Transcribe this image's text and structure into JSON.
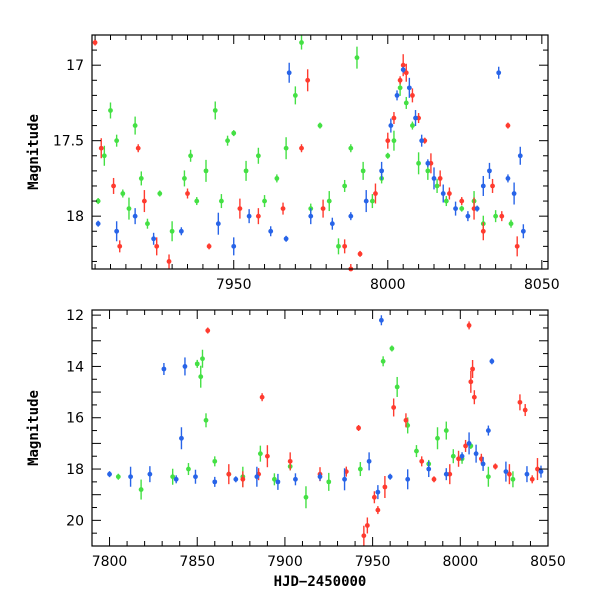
{
  "chart_data": [
    {
      "type": "scatter",
      "title": "",
      "xlabel": "",
      "ylabel": "Magnitude",
      "xlim": [
        7904,
        8052
      ],
      "ylim": [
        18.35,
        16.8
      ],
      "yaxis_inverted": true,
      "xticks": [
        7950,
        8000,
        8050
      ],
      "yticks": [
        17,
        17.5,
        18
      ],
      "ytick_labels": [
        "17",
        "17.5",
        "18"
      ],
      "grid": false,
      "series": [
        {
          "color": "#44e044",
          "points": [
            [
              7906,
              17.9
            ],
            [
              7908,
              17.6
            ],
            [
              7910,
              17.3
            ],
            [
              7912,
              17.5
            ],
            [
              7914,
              17.85
            ],
            [
              7916,
              17.95
            ],
            [
              7918,
              17.4
            ],
            [
              7920,
              17.75
            ],
            [
              7922,
              18.05
            ],
            [
              7926,
              17.85
            ],
            [
              7930,
              18.1
            ],
            [
              7934,
              17.75
            ],
            [
              7936,
              17.6
            ],
            [
              7938,
              17.9
            ],
            [
              7941,
              17.7
            ],
            [
              7944,
              17.3
            ],
            [
              7946,
              17.9
            ],
            [
              7948,
              17.5
            ],
            [
              7950,
              17.45
            ],
            [
              7954,
              17.7
            ],
            [
              7958,
              17.6
            ],
            [
              7960,
              17.9
            ],
            [
              7964,
              17.75
            ],
            [
              7967,
              17.55
            ],
            [
              7970,
              17.2
            ],
            [
              7972,
              16.85
            ],
            [
              7975,
              17.95
            ],
            [
              7978,
              17.4
            ],
            [
              7981,
              17.9
            ],
            [
              7984,
              18.2
            ],
            [
              7986,
              17.8
            ],
            [
              7988,
              17.55
            ],
            [
              7990,
              16.95
            ],
            [
              7992,
              17.7
            ],
            [
              7995,
              17.9
            ],
            [
              7998,
              17.75
            ],
            [
              8000,
              17.6
            ],
            [
              8002,
              17.5
            ],
            [
              8004,
              17.15
            ],
            [
              8006,
              17.25
            ],
            [
              8008,
              17.4
            ],
            [
              8010,
              17.65
            ],
            [
              8013,
              17.7
            ],
            [
              8016,
              17.8
            ],
            [
              8019,
              17.9
            ],
            [
              8024,
              17.95
            ],
            [
              8028,
              17.9
            ],
            [
              8031,
              18.05
            ],
            [
              8035,
              18.0
            ],
            [
              8040,
              18.05
            ]
          ]
        },
        {
          "color": "#ff3b2f",
          "points": [
            [
              7905,
              16.85
            ],
            [
              7907,
              17.55
            ],
            [
              7911,
              17.8
            ],
            [
              7913,
              18.2
            ],
            [
              7919,
              17.55
            ],
            [
              7921,
              17.9
            ],
            [
              7925,
              18.2
            ],
            [
              7929,
              18.3
            ],
            [
              7935,
              17.85
            ],
            [
              7942,
              18.2
            ],
            [
              7952,
              17.95
            ],
            [
              7958,
              18.0
            ],
            [
              7966,
              17.95
            ],
            [
              7972,
              17.55
            ],
            [
              7974,
              17.1
            ],
            [
              7979,
              17.95
            ],
            [
              7986,
              18.2
            ],
            [
              7988,
              18.35
            ],
            [
              7991,
              18.25
            ],
            [
              7996,
              17.85
            ],
            [
              8000,
              17.5
            ],
            [
              8002,
              17.35
            ],
            [
              8004,
              17.1
            ],
            [
              8005,
              17.0
            ],
            [
              8006,
              17.05
            ],
            [
              8008,
              17.2
            ],
            [
              8010,
              17.35
            ],
            [
              8012,
              17.5
            ],
            [
              8014,
              17.65
            ],
            [
              8017,
              17.75
            ],
            [
              8020,
              17.85
            ],
            [
              8024,
              17.9
            ],
            [
              8028,
              17.95
            ],
            [
              8031,
              18.1
            ],
            [
              8034,
              17.8
            ],
            [
              8037,
              18.0
            ],
            [
              8039,
              17.4
            ],
            [
              8042,
              18.2
            ]
          ]
        },
        {
          "color": "#2864e8",
          "points": [
            [
              7906,
              18.05
            ],
            [
              7912,
              18.1
            ],
            [
              7918,
              18.0
            ],
            [
              7924,
              18.15
            ],
            [
              7933,
              18.1
            ],
            [
              7945,
              18.05
            ],
            [
              7950,
              18.2
            ],
            [
              7955,
              18.0
            ],
            [
              7962,
              18.1
            ],
            [
              7967,
              18.15
            ],
            [
              7968,
              17.05
            ],
            [
              7975,
              18.0
            ],
            [
              7982,
              18.05
            ],
            [
              7988,
              18.0
            ],
            [
              7993,
              17.9
            ],
            [
              7998,
              17.7
            ],
            [
              8001,
              17.4
            ],
            [
              8003,
              17.2
            ],
            [
              8005,
              17.03
            ],
            [
              8007,
              17.15
            ],
            [
              8009,
              17.35
            ],
            [
              8011,
              17.5
            ],
            [
              8013,
              17.65
            ],
            [
              8015,
              17.75
            ],
            [
              8018,
              17.85
            ],
            [
              8022,
              17.95
            ],
            [
              8026,
              18.0
            ],
            [
              8029,
              17.95
            ],
            [
              8031,
              17.8
            ],
            [
              8033,
              17.7
            ],
            [
              8036,
              17.05
            ],
            [
              8039,
              17.75
            ],
            [
              8041,
              17.85
            ],
            [
              8043,
              17.6
            ],
            [
              8044,
              18.1
            ]
          ]
        }
      ]
    },
    {
      "type": "scatter",
      "title": "",
      "xlabel": "HJD−2450000",
      "ylabel": "Magnitude",
      "xlim": [
        7790,
        8050
      ],
      "ylim": [
        21,
        11.8
      ],
      "yaxis_inverted": true,
      "xticks": [
        7800,
        7850,
        7900,
        7950,
        8000,
        8050
      ],
      "yticks": [
        12,
        14,
        16,
        18,
        20
      ],
      "ytick_labels": [
        "12",
        "14",
        "16",
        "18",
        "20"
      ],
      "grid": false,
      "series": [
        {
          "color": "#44e044",
          "points": [
            [
              7805,
              18.3
            ],
            [
              7818,
              18.8
            ],
            [
              7836,
              18.3
            ],
            [
              7845,
              18.0
            ],
            [
              7850,
              13.9
            ],
            [
              7852,
              14.4
            ],
            [
              7853,
              13.7
            ],
            [
              7855,
              16.1
            ],
            [
              7860,
              17.7
            ],
            [
              7868,
              18.2
            ],
            [
              7876,
              18.3
            ],
            [
              7886,
              17.4
            ],
            [
              7894,
              18.4
            ],
            [
              7903,
              17.9
            ],
            [
              7912,
              19.1
            ],
            [
              7925,
              18.5
            ],
            [
              7943,
              18.0
            ],
            [
              7956,
              13.8
            ],
            [
              7961,
              13.3
            ],
            [
              7964,
              14.8
            ],
            [
              7970,
              16.3
            ],
            [
              7975,
              17.3
            ],
            [
              7982,
              17.8
            ],
            [
              7987,
              16.8
            ],
            [
              7992,
              16.5
            ],
            [
              7996,
              17.5
            ],
            [
              8001,
              17.6
            ],
            [
              8006,
              17.1
            ],
            [
              8016,
              18.3
            ],
            [
              8030,
              18.4
            ]
          ]
        },
        {
          "color": "#ff3b2f",
          "points": [
            [
              7856,
              12.6
            ],
            [
              7868,
              18.2
            ],
            [
              7876,
              18.4
            ],
            [
              7885,
              18.2
            ],
            [
              7887,
              15.2
            ],
            [
              7890,
              17.5
            ],
            [
              7903,
              17.7
            ],
            [
              7920,
              18.2
            ],
            [
              7935,
              18.1
            ],
            [
              7942,
              16.4
            ],
            [
              7945,
              20.6
            ],
            [
              7947,
              20.2
            ],
            [
              7951,
              19.1
            ],
            [
              7953,
              19.6
            ],
            [
              7957,
              18.7
            ],
            [
              7962,
              15.6
            ],
            [
              7969,
              16.1
            ],
            [
              7978,
              17.7
            ],
            [
              7985,
              18.4
            ],
            [
              7994,
              18.2
            ],
            [
              7999,
              17.6
            ],
            [
              8003,
              17.1
            ],
            [
              8005,
              12.4
            ],
            [
              8006,
              14.6
            ],
            [
              8007,
              14.1
            ],
            [
              8008,
              15.2
            ],
            [
              8012,
              17.6
            ],
            [
              8020,
              17.9
            ],
            [
              8028,
              18.2
            ],
            [
              8034,
              15.4
            ],
            [
              8037,
              15.7
            ],
            [
              8041,
              18.4
            ],
            [
              8044,
              18.0
            ]
          ]
        },
        {
          "color": "#2864e8",
          "points": [
            [
              7800,
              18.2
            ],
            [
              7812,
              18.3
            ],
            [
              7823,
              18.2
            ],
            [
              7831,
              14.1
            ],
            [
              7838,
              18.4
            ],
            [
              7841,
              16.8
            ],
            [
              7843,
              14.0
            ],
            [
              7849,
              18.3
            ],
            [
              7860,
              18.5
            ],
            [
              7872,
              18.4
            ],
            [
              7884,
              18.3
            ],
            [
              7896,
              18.5
            ],
            [
              7906,
              18.4
            ],
            [
              7920,
              18.3
            ],
            [
              7934,
              18.4
            ],
            [
              7948,
              17.7
            ],
            [
              7953,
              18.9
            ],
            [
              7955,
              12.2
            ],
            [
              7960,
              18.3
            ],
            [
              7970,
              18.4
            ],
            [
              7982,
              18.0
            ],
            [
              7992,
              18.2
            ],
            [
              8001,
              17.5
            ],
            [
              8005,
              17.0
            ],
            [
              8009,
              17.4
            ],
            [
              8013,
              17.8
            ],
            [
              8016,
              16.5
            ],
            [
              8018,
              13.8
            ],
            [
              8026,
              18.1
            ],
            [
              8038,
              18.2
            ],
            [
              8046,
              18.1
            ]
          ]
        }
      ]
    }
  ]
}
